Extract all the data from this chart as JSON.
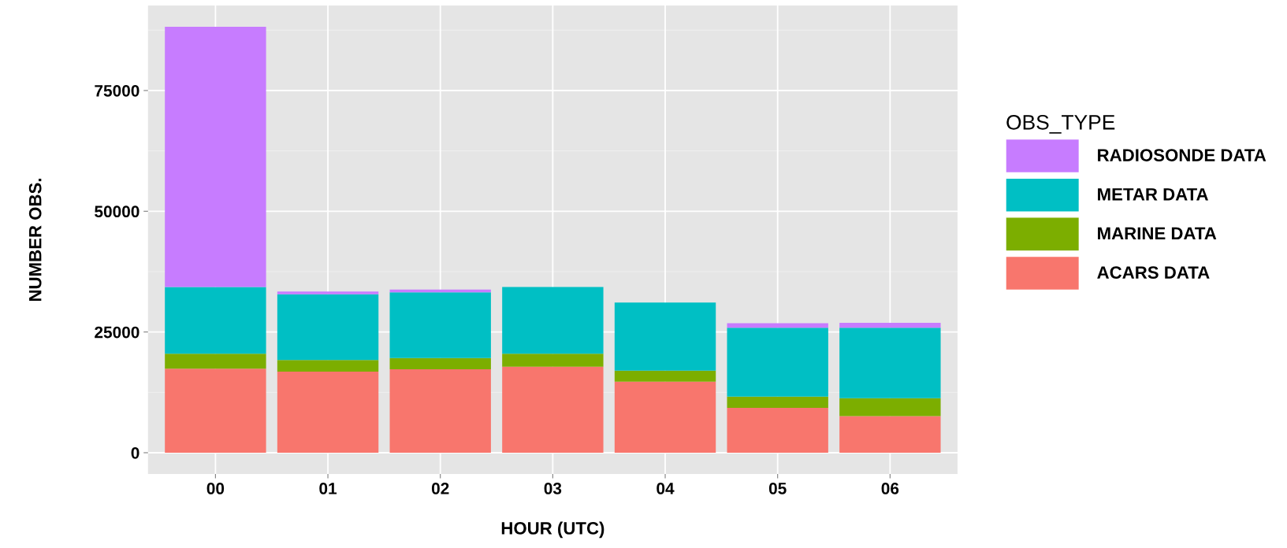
{
  "chart_data": {
    "type": "bar",
    "stacked": true,
    "xlabel": "HOUR (UTC)",
    "ylabel": "NUMBER OBS.",
    "legend_title": "OBS_TYPE",
    "categories": [
      "00",
      "01",
      "02",
      "03",
      "04",
      "05",
      "06"
    ],
    "series": [
      {
        "name": "ACARS DATA",
        "color": "#f8766d",
        "values": [
          17400,
          16800,
          17300,
          17800,
          14700,
          9300,
          7600
        ]
      },
      {
        "name": "MARINE DATA",
        "color": "#7cae00",
        "values": [
          3100,
          2400,
          2300,
          2700,
          2300,
          2300,
          3700
        ]
      },
      {
        "name": "METAR DATA",
        "color": "#00bfc4",
        "values": [
          13800,
          13600,
          13600,
          13800,
          14100,
          14300,
          14600
        ]
      },
      {
        "name": "RADIOSONDE DATA",
        "color": "#c77cff",
        "values": [
          53900,
          600,
          600,
          0,
          0,
          900,
          1000
        ]
      }
    ],
    "ylim": [
      -4410,
      92610
    ],
    "yticks": [
      0,
      25000,
      50000,
      75000
    ],
    "grid": true,
    "legend": "right"
  }
}
